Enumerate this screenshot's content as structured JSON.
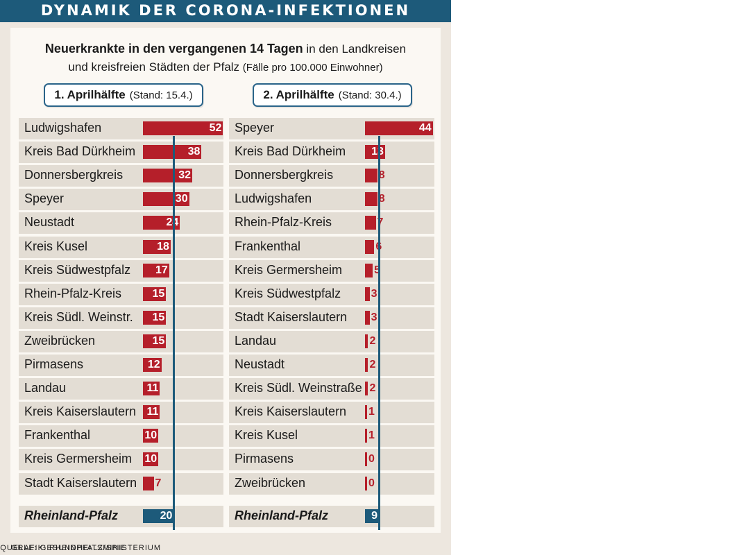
{
  "banner": {
    "title": "DYNAMIK DER CORONA-INFEKTIONEN"
  },
  "header": {
    "line1_bold": "Neuerkrankte in den vergangenen 14 Tagen",
    "line1_rest": "in den Landkreisen",
    "line2": "und kreisfreien Städten der Pfalz",
    "line2_small": "(Fälle  pro 100.000 Einwohner)"
  },
  "columns": [
    {
      "heading": "1.  Aprilhälfte",
      "stand": "(Stand: 15.4.)"
    },
    {
      "heading": "2. Aprilhälfte",
      "stand": "(Stand: 30.4.)"
    }
  ],
  "footer": {
    "credit": "GRAFIK: RHEINPFALZ/SPIE",
    "source": "QUELLE: GESUNDHEITSMINISTERIUM"
  },
  "colors": {
    "bar": "#b51f2a",
    "total_bar": "#1d5a7a",
    "banner": "#1d5a7a",
    "row": "#e3ddd4"
  },
  "chart_data": [
    {
      "type": "bar",
      "orientation": "horizontal",
      "title": "1.  Aprilhälfte (Stand: 15.4.)",
      "categories": [
        "Ludwigshafen",
        "Kreis Bad Dürkheim",
        "Donnersbergkreis",
        "Speyer",
        "Neustadt",
        "Kreis Kusel",
        "Kreis Südwestpfalz",
        "Rhein-Pfalz-Kreis",
        "Kreis Südl. Weinstr.",
        "Zweibrücken",
        "Pirmasens",
        "Landau",
        "Kreis Kaiserslautern",
        "Frankenthal",
        "Kreis Germersheim",
        "Stadt Kaiserslautern"
      ],
      "values": [
        52,
        38,
        32,
        30,
        24,
        18,
        17,
        15,
        15,
        15,
        12,
        11,
        11,
        10,
        10,
        7
      ],
      "total": {
        "label": "Rheinland-Pfalz",
        "value": 20
      },
      "reference_line": 20
    },
    {
      "type": "bar",
      "orientation": "horizontal",
      "title": "2. Aprilhälfte (Stand: 30.4.)",
      "categories": [
        "Speyer",
        "Kreis Bad Dürkheim",
        "Donnersbergkreis",
        "Ludwigshafen",
        "Rhein-Pfalz-Kreis",
        "Frankenthal",
        "Kreis Germersheim",
        "Kreis Südwestpfalz",
        "Stadt Kaiserslautern",
        "Landau",
        "Neustadt",
        "Kreis Südl. Weinstraße",
        "Kreis Kaiserslautern",
        "Kreis Kusel",
        "Pirmasens",
        "Zweibrücken"
      ],
      "values": [
        44,
        13,
        8,
        8,
        7,
        6,
        5,
        3,
        3,
        2,
        2,
        2,
        1,
        1,
        0,
        0
      ],
      "total": {
        "label": "Rheinland-Pfalz",
        "value": 9
      },
      "reference_line": 9
    }
  ]
}
